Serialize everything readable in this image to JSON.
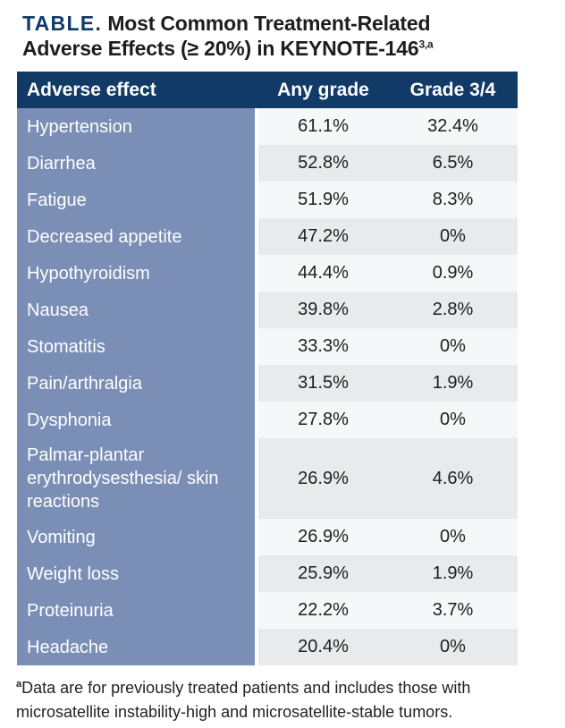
{
  "title": {
    "label": "TABLE.",
    "text": " Most Common Treatment-Related Adverse Effects (≥ 20%) in KEYNOTE-146",
    "superscript": "3,a"
  },
  "table": {
    "columns": {
      "effect": "Adverse effect",
      "any_grade": "Any grade",
      "grade_3_4": "Grade 3/4"
    },
    "rows": [
      {
        "effect": "Hypertension",
        "any_grade": "61.1%",
        "grade_3_4": "32.4%"
      },
      {
        "effect": "Diarrhea",
        "any_grade": "52.8%",
        "grade_3_4": "6.5%"
      },
      {
        "effect": "Fatigue",
        "any_grade": "51.9%",
        "grade_3_4": "8.3%"
      },
      {
        "effect": "Decreased appetite",
        "any_grade": "47.2%",
        "grade_3_4": "0%"
      },
      {
        "effect": "Hypothyroidism",
        "any_grade": "44.4%",
        "grade_3_4": "0.9%"
      },
      {
        "effect": "Nausea",
        "any_grade": "39.8%",
        "grade_3_4": "2.8%"
      },
      {
        "effect": "Stomatitis",
        "any_grade": "33.3%",
        "grade_3_4": "0%"
      },
      {
        "effect": "Pain/arthralgia",
        "any_grade": "31.5%",
        "grade_3_4": "1.9%"
      },
      {
        "effect": "Dysphonia",
        "any_grade": "27.8%",
        "grade_3_4": "0%"
      },
      {
        "effect": "Palmar-plantar erythrodysesthesia/ skin reactions",
        "any_grade": "26.9%",
        "grade_3_4": "4.6%"
      },
      {
        "effect": "Vomiting",
        "any_grade": "26.9%",
        "grade_3_4": "0%"
      },
      {
        "effect": "Weight loss",
        "any_grade": "25.9%",
        "grade_3_4": "1.9%"
      },
      {
        "effect": "Proteinuria",
        "any_grade": "22.2%",
        "grade_3_4": "3.7%"
      },
      {
        "effect": "Headache",
        "any_grade": "20.4%",
        "grade_3_4": "0%"
      }
    ]
  },
  "footnote": {
    "marker": "a",
    "text": "Data are for previously treated patients and includes those with microsatellite instability-high and microsatellite-stable tumors."
  },
  "colors": {
    "header_navy": "#123A66",
    "column_blue": "#7A8EB6",
    "row_light": "#F6F7F8",
    "row_alt": "#E9EAEC"
  }
}
